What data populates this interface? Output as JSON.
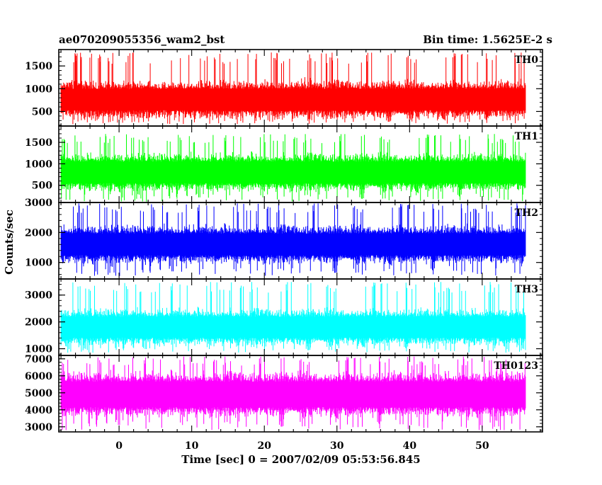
{
  "chart_data": {
    "type": "line",
    "title": "ae070209055356_wam2_bst",
    "subtitle": "Bin time: 1.5625E-2 s",
    "xlabel": "Time [sec] 0 = 2007/02/09 05:53:56.845",
    "ylabel": "Counts/sec",
    "xlim": [
      -8.3,
      58.3
    ],
    "data_x_range": [
      -8.0,
      56.0
    ],
    "x_ticks": [
      0,
      10,
      20,
      30,
      40,
      50
    ],
    "grid": false,
    "series": [
      {
        "name": "TH0",
        "color": "#ff0000",
        "ylim": [
          180,
          1860
        ],
        "y_ticks": [
          500,
          1000,
          1500
        ],
        "mean": 760,
        "min": 220,
        "max": 1800,
        "typical_low": 350,
        "typical_high": 1200
      },
      {
        "name": "TH1",
        "color": "#00ff00",
        "ylim": [
          100,
          1880
        ],
        "y_ticks": [
          500,
          1000,
          1500
        ],
        "mean": 800,
        "min": 120,
        "max": 1700,
        "typical_low": 400,
        "typical_high": 1300
      },
      {
        "name": "TH2",
        "color": "#0000ff",
        "ylim": [
          450,
          3000
        ],
        "y_ticks": [
          1000,
          2000,
          3000
        ],
        "mean": 1600,
        "min": 550,
        "max": 2980,
        "typical_low": 1000,
        "typical_high": 2300
      },
      {
        "name": "TH3",
        "color": "#00ffff",
        "ylim": [
          750,
          3600
        ],
        "y_ticks": [
          1000,
          2000,
          3000
        ],
        "mean": 1800,
        "min": 850,
        "max": 3500,
        "typical_low": 1200,
        "typical_high": 2600
      },
      {
        "name": "TH0123",
        "color": "#ff00ff",
        "ylim": [
          2700,
          7200
        ],
        "y_ticks": [
          3000,
          4000,
          5000,
          6000,
          7000
        ],
        "mean": 4900,
        "min": 2800,
        "max": 7150,
        "typical_low": 3600,
        "typical_high": 6300
      }
    ]
  }
}
